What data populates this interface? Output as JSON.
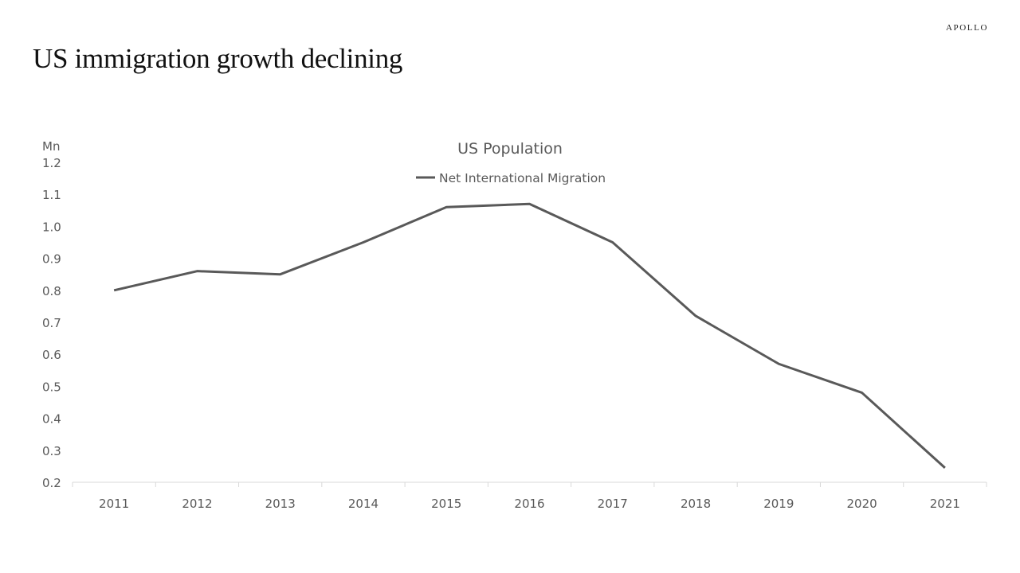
{
  "slide": {
    "title": "US immigration growth declining",
    "logo": "APOLLO"
  },
  "chart_data": {
    "type": "line",
    "title": "US Population",
    "ylabel": "Mn",
    "categories": [
      "2011",
      "2012",
      "2013",
      "2014",
      "2015",
      "2016",
      "2017",
      "2018",
      "2019",
      "2020",
      "2021"
    ],
    "series": [
      {
        "name": "Net International Migration",
        "color": "#595959",
        "values": [
          0.8,
          0.86,
          0.85,
          0.95,
          1.06,
          1.07,
          0.95,
          0.72,
          0.57,
          0.48,
          0.245
        ]
      }
    ],
    "ylim": [
      0.2,
      1.2
    ],
    "yticks": [
      "0.2",
      "0.3",
      "0.4",
      "0.5",
      "0.6",
      "0.7",
      "0.8",
      "0.9",
      "1.0",
      "1.1",
      "1.2"
    ],
    "grid": false,
    "legend": "top"
  }
}
